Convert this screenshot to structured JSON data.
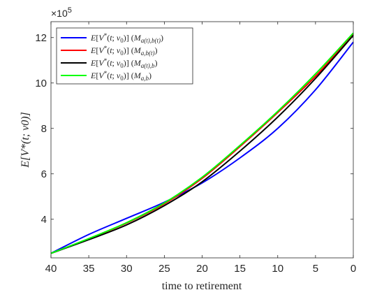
{
  "chart_data": {
    "type": "line",
    "title": "",
    "xlabel": "time to retirement",
    "ylabel": "E[V*(t; v0)]",
    "exponent_label": "×10",
    "exponent_power": "5",
    "x_reversed": true,
    "xlim": [
      0,
      40
    ],
    "ylim": [
      2.3,
      12.7
    ],
    "x_ticks": [
      40,
      35,
      30,
      25,
      20,
      15,
      10,
      5,
      0
    ],
    "y_ticks": [
      4,
      6,
      8,
      10,
      12
    ],
    "grid": false,
    "legend_position": "top-left",
    "x": [
      40,
      35,
      30,
      25,
      20,
      15,
      10,
      5,
      0
    ],
    "series": [
      {
        "name": "E[V*(t; v0)] (M a(t),b(t))",
        "color": "#0000ff",
        "values": [
          2.5,
          3.33,
          4.04,
          4.75,
          5.6,
          6.7,
          8.0,
          9.7,
          11.8
        ]
      },
      {
        "name": "E[V*(t; v0)] (M a,b(t))",
        "color": "#ff0000",
        "values": [
          2.5,
          3.14,
          3.83,
          4.68,
          5.8,
          7.2,
          8.7,
          10.3,
          12.15
        ]
      },
      {
        "name": "E[V*(t; v0)] (M a(t),b)",
        "color": "#000000",
        "values": [
          2.5,
          3.1,
          3.75,
          4.6,
          5.65,
          7.0,
          8.5,
          10.2,
          12.1
        ]
      },
      {
        "name": "E[V*(t; v0)] (M a,b)",
        "color": "#00ff00",
        "values": [
          2.5,
          3.15,
          3.85,
          4.72,
          5.85,
          7.25,
          8.75,
          10.4,
          12.2
        ]
      }
    ]
  }
}
